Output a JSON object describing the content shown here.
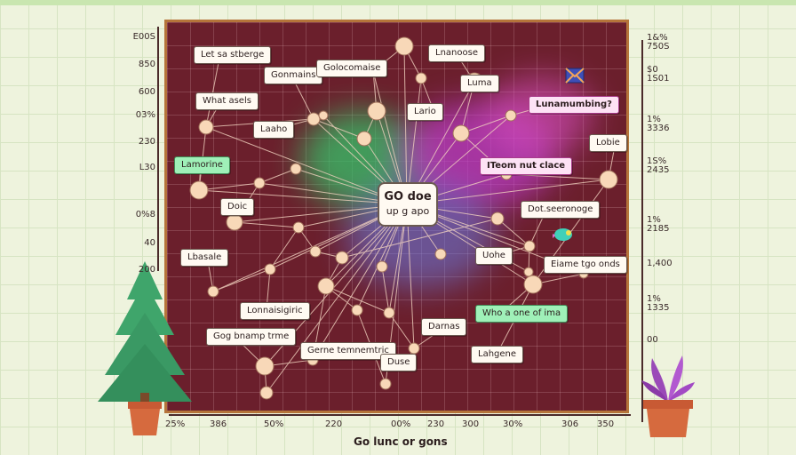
{
  "center_label": [
    "GO doe",
    "up g apo"
  ],
  "labels": [
    {
      "id": "l1",
      "text": "Let sa stberge",
      "style": "plain"
    },
    {
      "id": "l2",
      "text": "Gonmains",
      "style": "plain"
    },
    {
      "id": "l3",
      "text": "Golocomaise",
      "style": "plain"
    },
    {
      "id": "l4",
      "text": "Lnanoose",
      "style": "plain"
    },
    {
      "id": "l5",
      "text": "Luma",
      "style": "plain"
    },
    {
      "id": "l6",
      "text": "Lunamumbing?",
      "style": "pink"
    },
    {
      "id": "l7",
      "text": "What asels",
      "style": "plain"
    },
    {
      "id": "l8",
      "text": "Lario",
      "style": "plain"
    },
    {
      "id": "l9",
      "text": "Laaho",
      "style": "plain"
    },
    {
      "id": "l10",
      "text": "Lobie",
      "style": "plain"
    },
    {
      "id": "l11",
      "text": "Lamorine",
      "style": "green"
    },
    {
      "id": "l12",
      "text": "ITeom nut clace",
      "style": "pink"
    },
    {
      "id": "l13",
      "text": "Doic",
      "style": "plain"
    },
    {
      "id": "l14",
      "text": "Dot.seeronoge",
      "style": "plain"
    },
    {
      "id": "l15",
      "text": "Lbasale",
      "style": "plain"
    },
    {
      "id": "l16",
      "text": "Uohe",
      "style": "plain"
    },
    {
      "id": "l17",
      "text": "Eiame tgo onds",
      "style": "plain"
    },
    {
      "id": "l18",
      "text": "Lonnaisigiric",
      "style": "plain"
    },
    {
      "id": "l19",
      "text": "Who a one of ima",
      "style": "green"
    },
    {
      "id": "l20",
      "text": "Gog bnamp trme",
      "style": "plain"
    },
    {
      "id": "l21",
      "text": "Darnas",
      "style": "plain"
    },
    {
      "id": "l22",
      "text": "Gerne temnemtric",
      "style": "plain"
    },
    {
      "id": "l23",
      "text": "Lahgene",
      "style": "plain"
    },
    {
      "id": "l24",
      "text": "Duse",
      "style": "plain"
    }
  ],
  "left_ticks": [
    "E00S",
    "850",
    "600",
    "03%",
    "230",
    "L30",
    "0%8",
    "40",
    "200"
  ],
  "right_ticks": [
    "1&%\n750S",
    "$0\n1S01",
    "1%\n3336",
    "1S%\n2435",
    "1%\n2185",
    "1,400",
    "1%\n1335",
    "00"
  ],
  "x_ticks": [
    "25%",
    "386",
    "50%",
    "220",
    "00%",
    "230",
    "300",
    "30%",
    "306",
    "350"
  ],
  "x_title": "Go lunc or gons",
  "colors": {
    "panel": "#6b1f2c",
    "frame": "#b5743a",
    "node": "#f8d8b8",
    "edge": "#f2d3c0"
  }
}
